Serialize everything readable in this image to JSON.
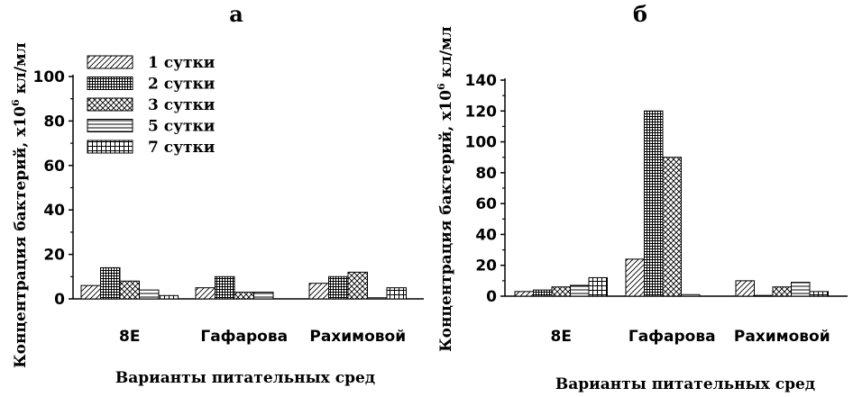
{
  "chart_data": [
    {
      "type": "bar",
      "panel_label": "а",
      "xlabel": "Варианты питательных сред",
      "ylabel": "Концентрация бактерий, х10",
      "ylabel_sup": "6",
      "ylabel_unit": " кл/мл",
      "ylim": [
        0,
        100
      ],
      "yticks": [
        "0",
        "20",
        "40",
        "60",
        "80",
        "100"
      ],
      "categories": [
        "8Е",
        "Гафарова",
        "Рахимовой"
      ],
      "legend_position": "top-left",
      "series": [
        {
          "name": "1 сутки",
          "pattern": "diag",
          "values": [
            6,
            5,
            7
          ]
        },
        {
          "name": "2 сутки",
          "pattern": "grid",
          "values": [
            14,
            10,
            10
          ]
        },
        {
          "name": "3 сутки",
          "pattern": "cross",
          "values": [
            8,
            3,
            12
          ]
        },
        {
          "name": "5 сутки",
          "pattern": "hlines",
          "values": [
            4,
            3,
            0.5
          ]
        },
        {
          "name": "7 сутки",
          "pattern": "dense",
          "values": [
            1.5,
            0,
            5
          ]
        }
      ]
    },
    {
      "type": "bar",
      "panel_label": "б",
      "xlabel": "Варианты питательных сред",
      "ylabel": "Концентрация бактерий, х10",
      "ylabel_sup": "6",
      "ylabel_unit": " кл/мл",
      "ylim": [
        0,
        140
      ],
      "yticks": [
        "0",
        "20",
        "40",
        "60",
        "80",
        "100",
        "120",
        "140"
      ],
      "categories": [
        "8Е",
        "Гафарова",
        "Рахимовой"
      ],
      "series": [
        {
          "name": "1 сутки",
          "pattern": "diag",
          "values": [
            3,
            24,
            10
          ]
        },
        {
          "name": "2 сутки",
          "pattern": "grid",
          "values": [
            4,
            120,
            0.5
          ]
        },
        {
          "name": "3 сутки",
          "pattern": "cross",
          "values": [
            6,
            90,
            6
          ]
        },
        {
          "name": "5 сутки",
          "pattern": "hlines",
          "values": [
            7,
            1,
            9
          ]
        },
        {
          "name": "7 сутки",
          "pattern": "dense",
          "values": [
            12,
            0,
            3
          ]
        }
      ]
    }
  ]
}
